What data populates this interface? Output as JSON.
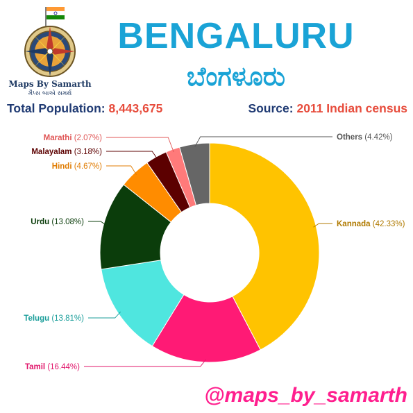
{
  "header": {
    "title": "BENGALURU",
    "subtitle": "ಬೆಂಗಳೂರು",
    "population_label": "Total Population:",
    "population_value": "8,443,675",
    "source_label": "Source:",
    "source_value": "2011 Indian census"
  },
  "logo": {
    "name_en": "Maps By Samarth",
    "name_gu": "મૈપ્સ બાએ સમર્થ",
    "icon": "compass-rose-with-flag"
  },
  "footer": {
    "handle": "@maps_by_samarth"
  },
  "chart_data": {
    "type": "pie",
    "donut": true,
    "legend": "callout-labels",
    "slices": [
      {
        "name": "Kannada",
        "pct_label": "(42.33%)",
        "value": 42.33,
        "color": "#ffc300",
        "label_color": "#b07a00"
      },
      {
        "name": "Tamil",
        "pct_label": "(16.44%)",
        "value": 16.44,
        "color": "#ff1a75",
        "label_color": "#e0156a"
      },
      {
        "name": "Telugu",
        "pct_label": "(13.81%)",
        "value": 13.81,
        "color": "#4fe6df",
        "label_color": "#1a9e9a"
      },
      {
        "name": "Urdu",
        "pct_label": "(13.08%)",
        "value": 13.08,
        "color": "#0b3d0b",
        "label_color": "#0b3d0b"
      },
      {
        "name": "Hindi",
        "pct_label": "(4.67%)",
        "value": 4.67,
        "color": "#ff8c00",
        "label_color": "#e07b00"
      },
      {
        "name": "Malayalam",
        "pct_label": "(3.18%)",
        "value": 3.18,
        "color": "#5c0000",
        "label_color": "#5c0000"
      },
      {
        "name": "Marathi",
        "pct_label": "(2.07%)",
        "value": 2.07,
        "color": "#ff7a7a",
        "label_color": "#e05555"
      },
      {
        "name": "Others",
        "pct_label": "(4.42%)",
        "value": 4.42,
        "color": "#666666",
        "label_color": "#555555"
      }
    ]
  }
}
